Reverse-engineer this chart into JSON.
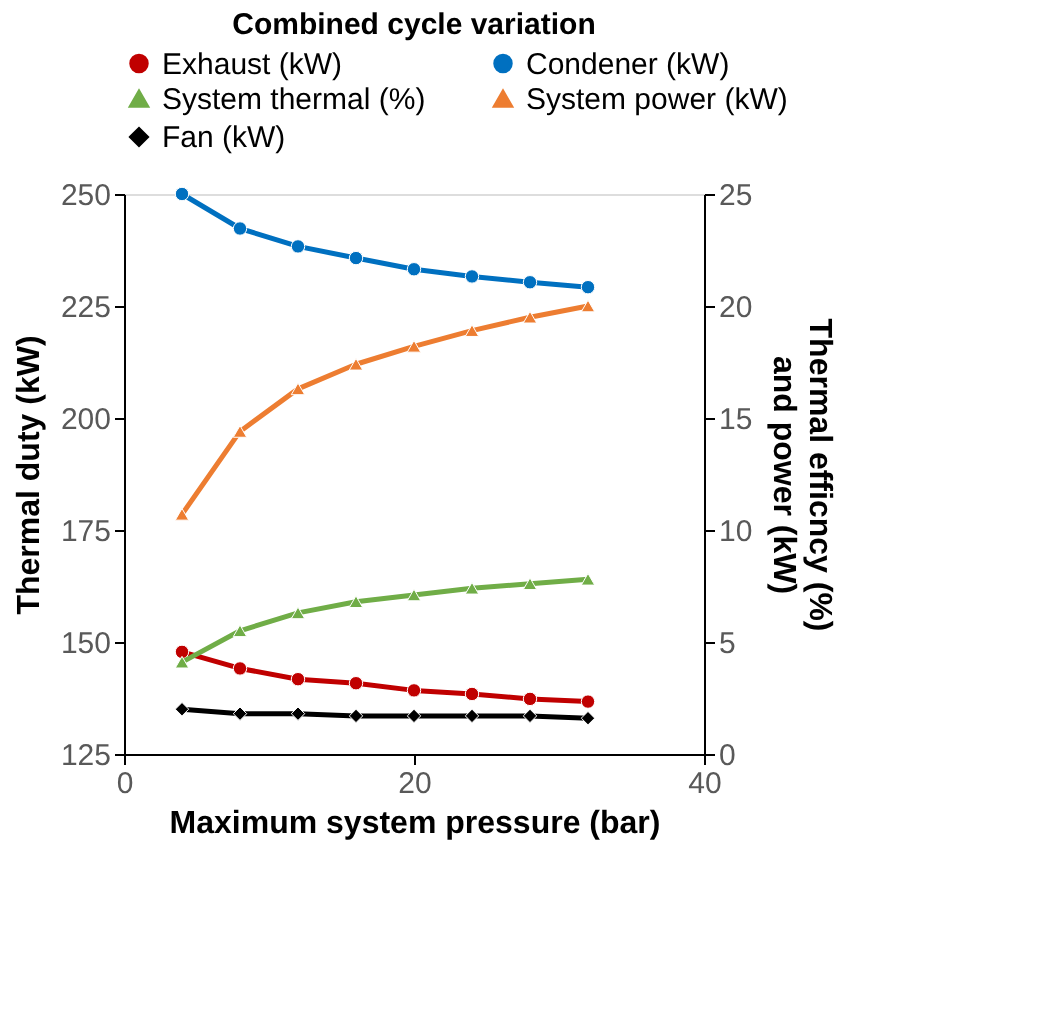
{
  "chart_data": {
    "type": "line",
    "title": "Combined cycle variation",
    "xlabel": "Maximum  system pressure (bar)",
    "ylabel": "Thermal duty (kW)",
    "y2label": "Thermal efficncy  (%)\nand power (kW)",
    "x": [
      4,
      8,
      12,
      16,
      20,
      24,
      28,
      32
    ],
    "series": [
      {
        "name": "Exhaust (kW)",
        "color": "#c00000",
        "marker": "circle",
        "values": [
          147.8,
          144.1,
          141.7,
          140.8,
          139.2,
          138.4,
          137.3,
          136.7
        ]
      },
      {
        "name": "Condener (kW)",
        "color": "#0070c0",
        "marker": "circle",
        "values": [
          250,
          242.3,
          238.3,
          235.7,
          233.2,
          231.6,
          230.3,
          229.2
        ]
      },
      {
        "name": "System thermal (%)",
        "color": "#70ad47",
        "marker": "triangle",
        "axis": "y2",
        "values": [
          4.1,
          5.5,
          6.3,
          6.8,
          7.1,
          7.4,
          7.6,
          7.8
        ]
      },
      {
        "name": "System power (kW)",
        "color": "#ed7d31",
        "marker": "triangle",
        "axis": "y2",
        "values": [
          10.7,
          14.4,
          16.3,
          17.4,
          18.2,
          18.9,
          19.5,
          20.0
        ]
      },
      {
        "name": "Fan (kW)",
        "color": "#000000",
        "marker": "diamond",
        "axis": "y2",
        "values": [
          2.0,
          1.8,
          1.8,
          1.7,
          1.7,
          1.7,
          1.7,
          1.6
        ]
      }
    ],
    "xlim": [
      0,
      40
    ],
    "xticks": [
      0,
      20,
      40
    ],
    "ylim": [
      125,
      250
    ],
    "yticks": [
      125,
      150,
      175,
      200,
      225,
      250
    ],
    "y2lim": [
      0,
      25
    ],
    "y2ticks": [
      0,
      5,
      10,
      15,
      20,
      25
    ],
    "grid": false,
    "legend": "top",
    "line_style": "solid"
  }
}
